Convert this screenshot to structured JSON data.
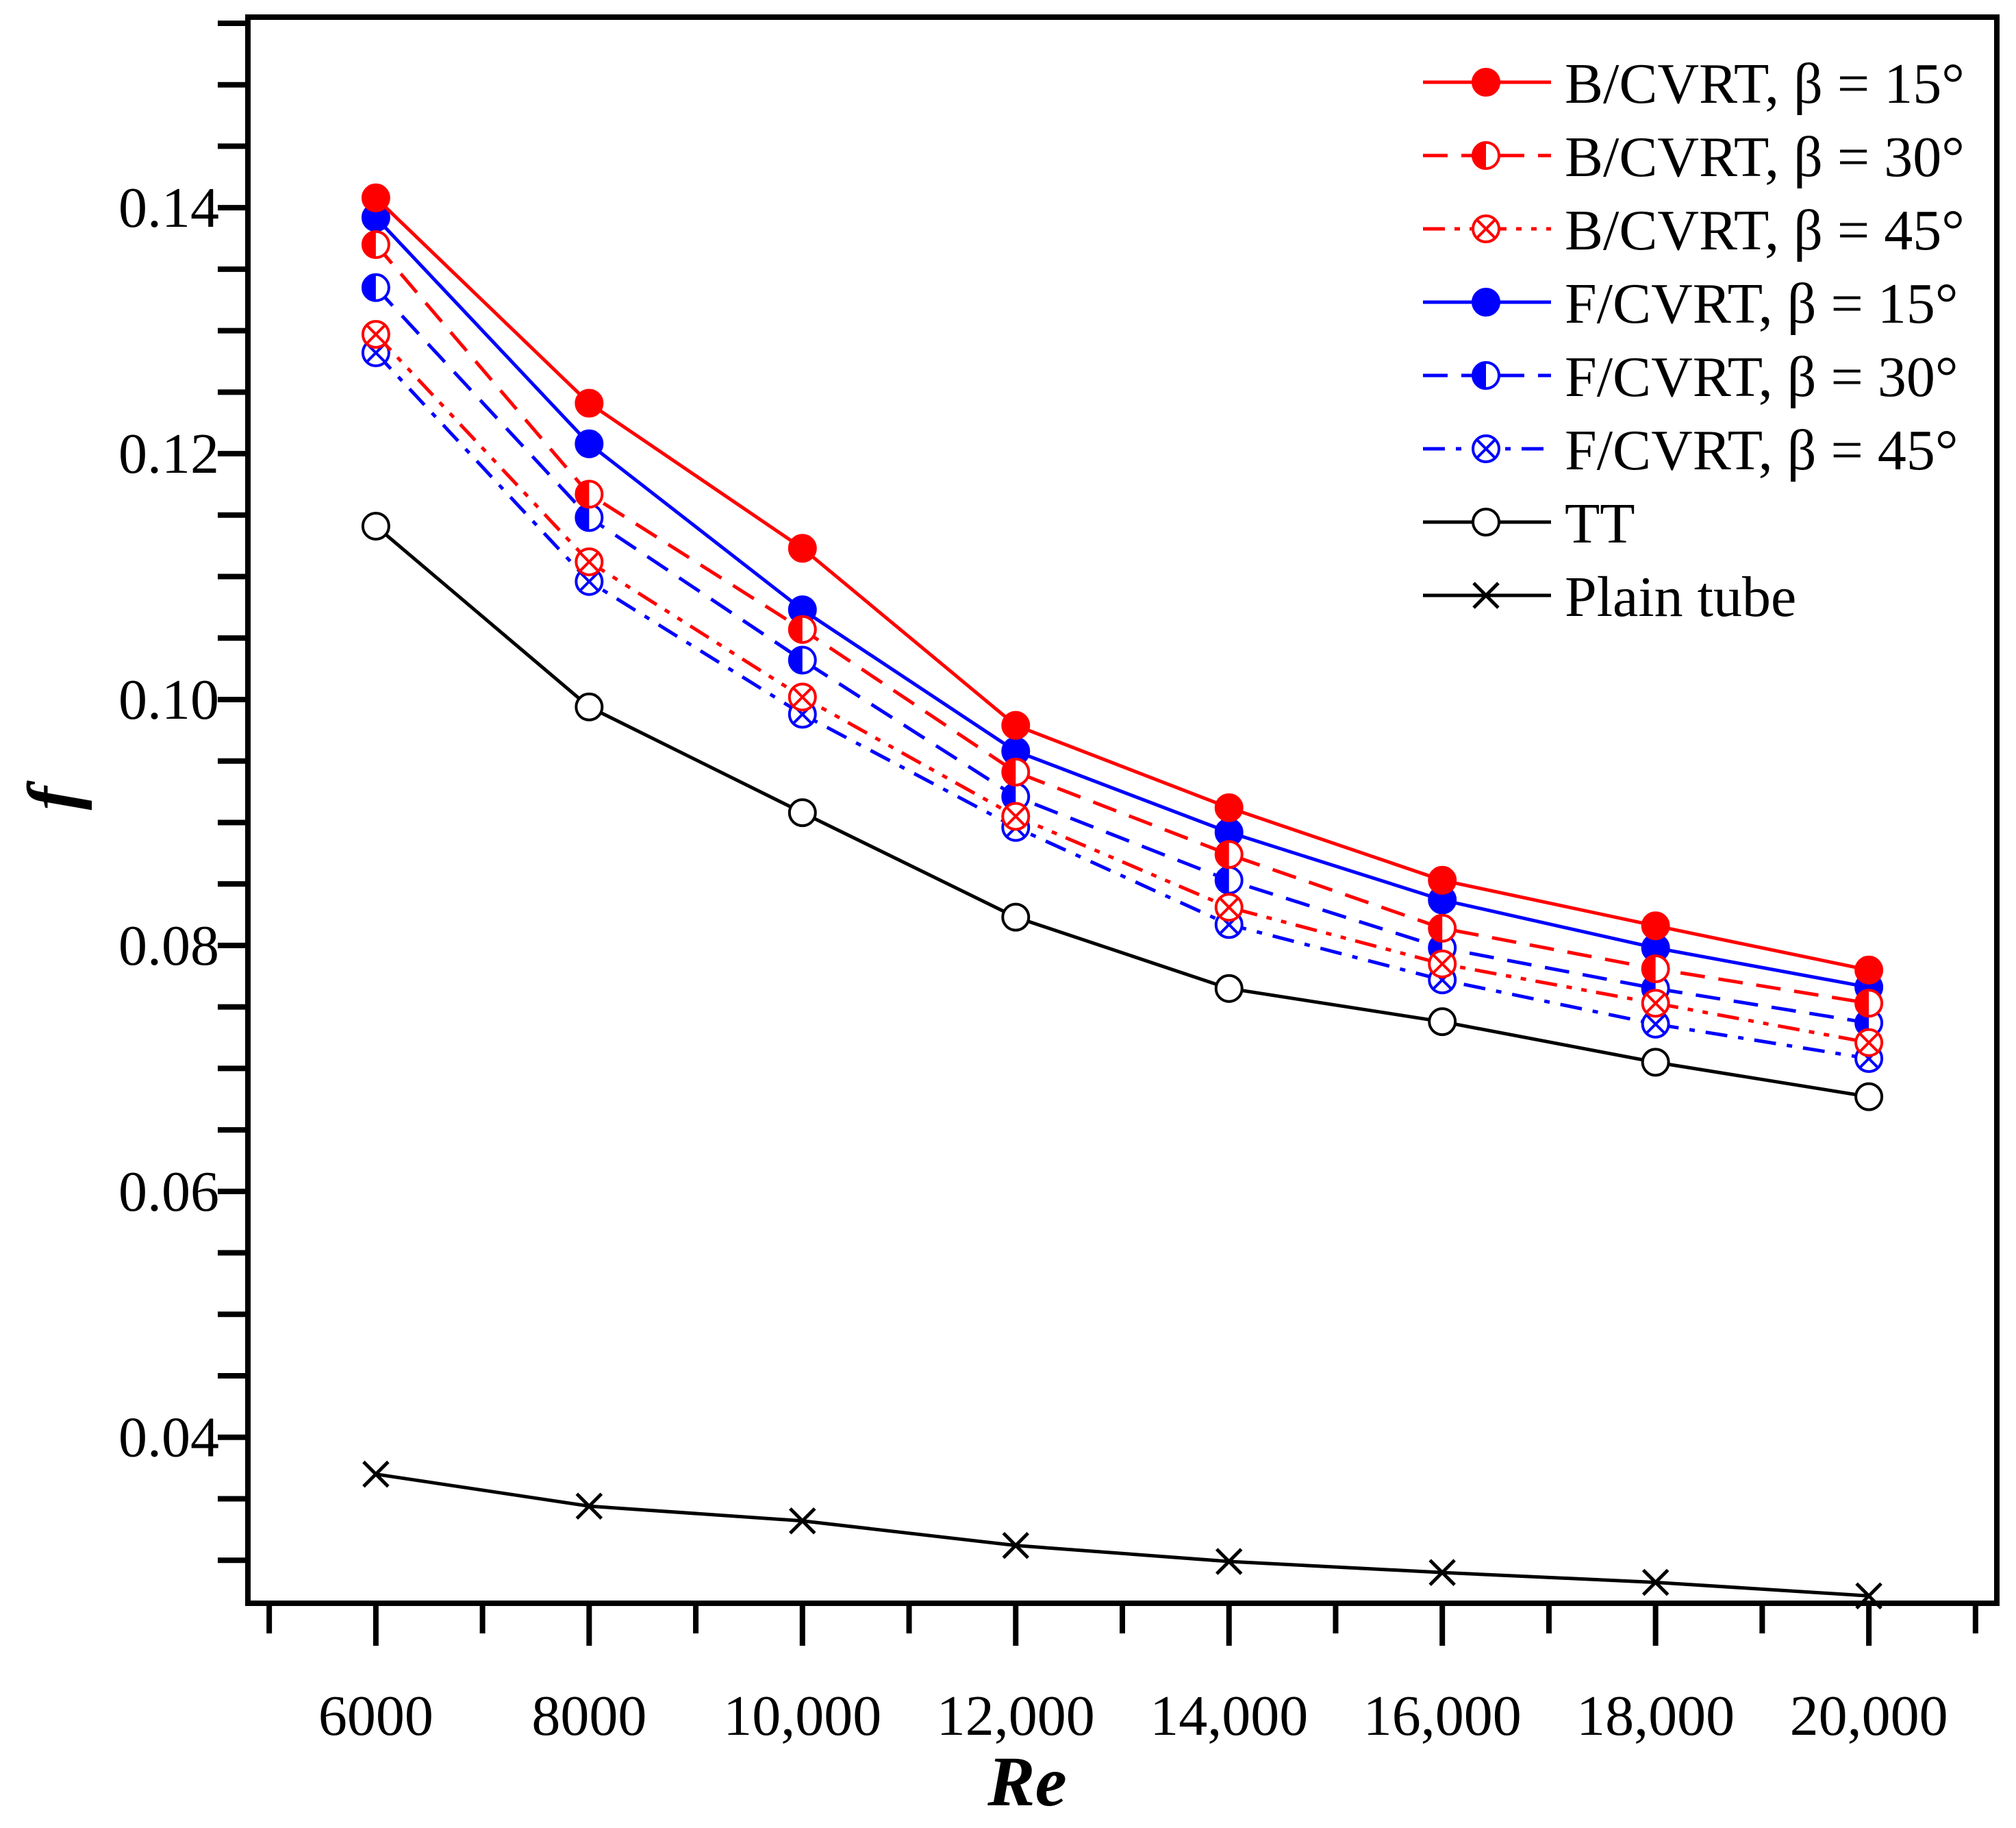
{
  "chart_data": {
    "type": "line",
    "title": "",
    "xlabel": "Re",
    "ylabel": "f",
    "xlim": [
      4800,
      21200
    ],
    "ylim": [
      0.0265,
      0.1555
    ],
    "x": [
      6000,
      8000,
      10000,
      12000,
      14000,
      16000,
      18000,
      20000
    ],
    "x_tick_labels": [
      "6000",
      "8000",
      "10,000",
      "12,000",
      "14,000",
      "16,000",
      "18,000",
      "20,000"
    ],
    "y_ticks": [
      0.04,
      0.06,
      0.08,
      0.1,
      0.12,
      0.14
    ],
    "y_tick_labels": [
      "0.04",
      "0.06",
      "0.08",
      "0.10",
      "0.12",
      "0.14"
    ],
    "legend_position": "top-right",
    "grid": false,
    "series": [
      {
        "name": "B/CVRT, β = 15°",
        "color": "#ff0000",
        "line": "solid",
        "marker": "filled-circle",
        "values": [
          0.1408,
          0.1241,
          0.1123,
          0.0979,
          0.0912,
          0.0853,
          0.0816,
          0.078
        ]
      },
      {
        "name": "B/CVRT, β = 30°",
        "color": "#ff0000",
        "line": "dash",
        "marker": "half-circle",
        "values": [
          0.137,
          0.1167,
          0.1057,
          0.0941,
          0.0874,
          0.0814,
          0.0781,
          0.0753
        ]
      },
      {
        "name": "B/CVRT, β = 45°",
        "color": "#ff0000",
        "line": "dash-dot-dot",
        "marker": "crossed-circle",
        "values": [
          0.1297,
          0.1112,
          0.1002,
          0.0905,
          0.0831,
          0.0785,
          0.0753,
          0.0721
        ]
      },
      {
        "name": "F/CVRT, β = 15°",
        "color": "#0000ff",
        "line": "solid",
        "marker": "filled-circle",
        "values": [
          0.1392,
          0.1208,
          0.1073,
          0.0958,
          0.0892,
          0.0837,
          0.0798,
          0.0766
        ]
      },
      {
        "name": "F/CVRT, β = 30°",
        "color": "#0000ff",
        "line": "dash",
        "marker": "half-circle",
        "values": [
          0.1335,
          0.1148,
          0.1032,
          0.0921,
          0.0853,
          0.0798,
          0.0765,
          0.0737
        ]
      },
      {
        "name": "F/CVRT, β = 45°",
        "color": "#0000ff",
        "line": "dash-dot",
        "marker": "crossed-circle",
        "values": [
          0.1282,
          0.1096,
          0.0988,
          0.0896,
          0.0817,
          0.0772,
          0.0736,
          0.0708
        ]
      },
      {
        "name": "TT",
        "color": "#000000",
        "line": "solid",
        "marker": "open-circle",
        "values": [
          0.1141,
          0.0994,
          0.0908,
          0.0823,
          0.0765,
          0.0738,
          0.0705,
          0.0677
        ]
      },
      {
        "name": "Plain tube",
        "color": "#000000",
        "line": "solid",
        "marker": "x",
        "values": [
          0.037,
          0.0344,
          0.0332,
          0.0312,
          0.0299,
          0.029,
          0.0282,
          0.0271
        ]
      }
    ]
  }
}
